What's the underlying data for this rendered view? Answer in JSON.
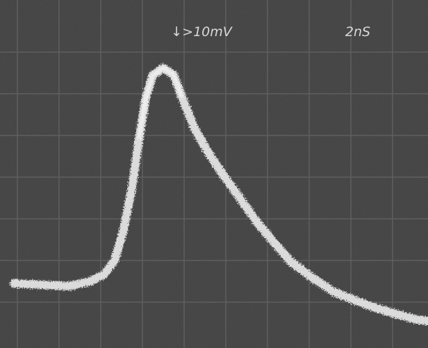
{
  "screen_labels": {
    "vertical_scale": "↓>10mV",
    "time_scale": "2nS"
  }
}
